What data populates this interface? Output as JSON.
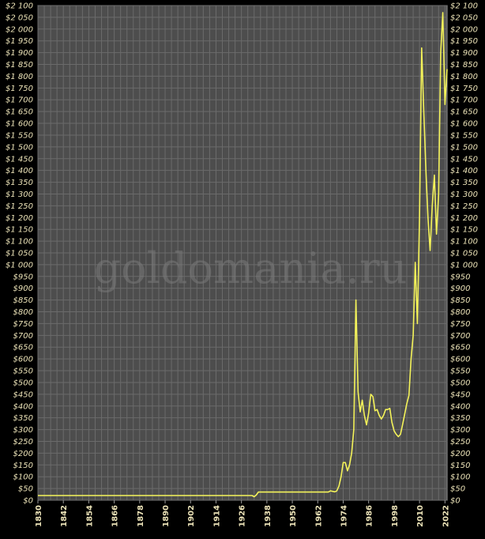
{
  "watermark": "goldomania.ru",
  "colors": {
    "background": "#000000",
    "plot_bg": "#4d4d4d",
    "grid": "#6b6b6b",
    "line": "#f4f35a",
    "labels": "#ece3b8"
  },
  "chart_data": {
    "type": "line",
    "title": "",
    "xlabel": "",
    "ylabel": "",
    "xlim": [
      1830,
      2023
    ],
    "ylim": [
      0,
      2100
    ],
    "y_tick_step": 50,
    "x_ticks": [
      1830,
      1842,
      1854,
      1866,
      1878,
      1890,
      1902,
      1914,
      1926,
      1938,
      1950,
      1962,
      1974,
      1986,
      1998,
      2010,
      2022
    ],
    "y_tick_labels": [
      "$0",
      "$50",
      "$100",
      "$150",
      "$200",
      "$250",
      "$300",
      "$350",
      "$400",
      "$450",
      "$500",
      "$550",
      "$600",
      "$650",
      "$700",
      "$750",
      "$800",
      "$850",
      "$900",
      "$950",
      "$1 000",
      "$1 050",
      "$1 100",
      "$1 150",
      "$1 200",
      "$1 250",
      "$1 300",
      "$1 350",
      "$1 400",
      "$1 450",
      "$1 500",
      "$1 550",
      "$1 600",
      "$1 650",
      "$1 700",
      "$1 750",
      "$1 800",
      "$1 850",
      "$1 900",
      "$1 950",
      "$2 000",
      "$2 050",
      "$2 100"
    ],
    "grid": true,
    "series": [
      {
        "x": [
          1830,
          1900,
          1931,
          1932,
          1933,
          1934,
          1940,
          1950,
          1960,
          1967,
          1968,
          1969,
          1970,
          1971,
          1972,
          1973,
          1974,
          1975,
          1976,
          1977,
          1978,
          1979,
          1980,
          1981,
          1982,
          1983,
          1984,
          1985,
          1986,
          1987,
          1988,
          1989,
          1990,
          1991,
          1992,
          1993,
          1994,
          1995,
          1996,
          1997,
          1998,
          1999,
          2000,
          2001,
          2002,
          2003,
          2004,
          2005,
          2006,
          2007,
          2008,
          2009,
          2010,
          2011,
          2012,
          2013,
          2014,
          2015,
          2016,
          2017,
          2018,
          2019,
          2020,
          2021,
          2022,
          2023
        ],
        "values": [
          20,
          20,
          20,
          15,
          22,
          35,
          35,
          35,
          35,
          35,
          40,
          38,
          36,
          40,
          60,
          100,
          160,
          160,
          125,
          150,
          200,
          300,
          850,
          460,
          375,
          425,
          360,
          320,
          370,
          450,
          440,
          380,
          385,
          360,
          345,
          360,
          385,
          385,
          390,
          330,
          295,
          280,
          270,
          280,
          320,
          365,
          410,
          445,
          600,
          700,
          1010,
          750,
          1200,
          1920,
          1650,
          1400,
          1200,
          1060,
          1250,
          1380,
          1130,
          1300,
          1900,
          2070,
          1680,
          1830
        ]
      }
    ]
  }
}
